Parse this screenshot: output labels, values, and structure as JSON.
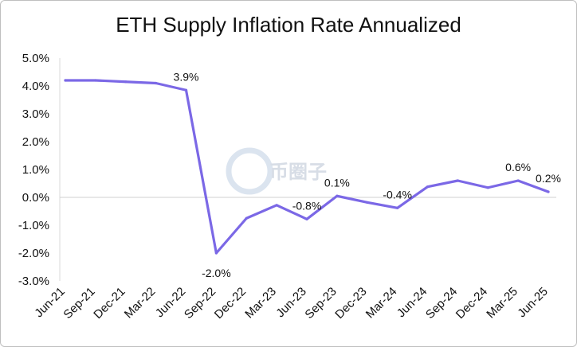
{
  "chart_data": {
    "type": "line",
    "title": "ETH Supply Inflation Rate Annualized",
    "xlabel": "",
    "ylabel": "",
    "ylim": [
      -3.0,
      5.0
    ],
    "yticks": [
      5.0,
      4.0,
      3.0,
      2.0,
      1.0,
      0.0,
      -1.0,
      -2.0,
      -3.0
    ],
    "ytick_labels": [
      "5.0%",
      "4.0%",
      "3.0%",
      "2.0%",
      "1.0%",
      "0.0%",
      "-1.0%",
      "-2.0%",
      "-3.0%"
    ],
    "categories": [
      "Jun-21",
      "Sep-21",
      "Dec-21",
      "Mar-22",
      "Jun-22",
      "Sep-22",
      "Dec-22",
      "Mar-23",
      "Jun-23",
      "Sep-23",
      "Dec-23",
      "Mar-24",
      "Jun-24",
      "Sep-24",
      "Dec-24",
      "Mar-25",
      "Jun-25"
    ],
    "grid": false,
    "zero_line": true,
    "legend": "none",
    "series": [
      {
        "color": "#7b68e6",
        "values": [
          4.2,
          4.2,
          4.15,
          4.1,
          3.85,
          -2.0,
          -0.75,
          -0.28,
          -0.78,
          0.05,
          -0.18,
          -0.38,
          0.38,
          0.6,
          0.35,
          0.6,
          0.2
        ]
      }
    ],
    "annotations": [
      {
        "index": 4,
        "text": "3.9%",
        "pos": "above"
      },
      {
        "index": 5,
        "text": "-2.0%",
        "pos": "below"
      },
      {
        "index": 8,
        "text": "-0.8%",
        "pos": "above"
      },
      {
        "index": 9,
        "text": "0.1%",
        "pos": "above"
      },
      {
        "index": 11,
        "text": "-0.4%",
        "pos": "above"
      },
      {
        "index": 15,
        "text": "0.6%",
        "pos": "above"
      },
      {
        "index": 16,
        "text": "0.2%",
        "pos": "above"
      }
    ]
  },
  "watermark": {
    "text": "币圈子",
    "icon": "coin-logo-icon"
  }
}
